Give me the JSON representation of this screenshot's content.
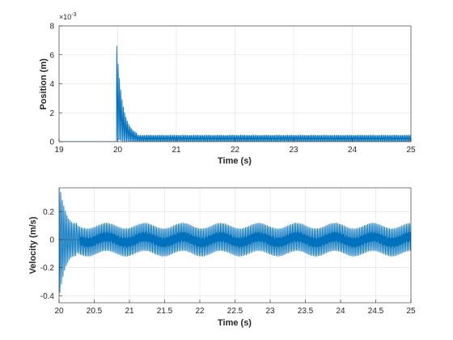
{
  "chart_data": [
    {
      "type": "line",
      "title": "",
      "xlabel": "Time (s)",
      "ylabel": "Position (m)",
      "xlim": [
        19,
        25
      ],
      "ylim": [
        0,
        0.008
      ],
      "y_exponent_label": "×10",
      "y_exponent_power": "-3",
      "xticks": [
        "19",
        "20",
        "21",
        "22",
        "23",
        "24",
        "25"
      ],
      "yticks": [
        "0",
        "2",
        "4",
        "6",
        "8"
      ],
      "grid": true,
      "series": [
        {
          "color": "#0072bd",
          "description_points": [
            [
              19,
              0
            ],
            [
              19.98,
              0
            ],
            [
              20.0,
              0.0058
            ],
            [
              20.02,
              0.0045
            ],
            [
              20.04,
              0.007
            ],
            [
              20.08,
              0.0052
            ],
            [
              20.12,
              0.004
            ],
            [
              20.16,
              0.0028
            ],
            [
              20.2,
              0.0016
            ],
            [
              20.25,
              0.0008
            ],
            [
              20.3,
              0.0004
            ],
            [
              25,
              0.0004
            ]
          ]
        }
      ]
    },
    {
      "type": "line",
      "title": "",
      "xlabel": "Time (s)",
      "ylabel": "Velocity (m/s)",
      "xlim": [
        20,
        25
      ],
      "ylim": [
        -0.45,
        0.37
      ],
      "xticks": [
        "20",
        "20.5",
        "21",
        "21.5",
        "22",
        "22.5",
        "23",
        "23.5",
        "24",
        "24.5",
        "25"
      ],
      "yticks": [
        "-0.4",
        "-0.2",
        "0",
        "0.2"
      ],
      "grid": true,
      "series": [
        {
          "color": "#0072bd",
          "description_points": [
            [
              20.0,
              0.37
            ],
            [
              20.03,
              -0.45
            ],
            [
              20.1,
              0.3
            ],
            [
              20.2,
              -0.25
            ],
            [
              20.3,
              0.1
            ],
            [
              20.4,
              0.1
            ],
            [
              25,
              0.1
            ]
          ]
        },
        {
          "color": "#d95319",
          "constant": 0
        }
      ]
    }
  ]
}
